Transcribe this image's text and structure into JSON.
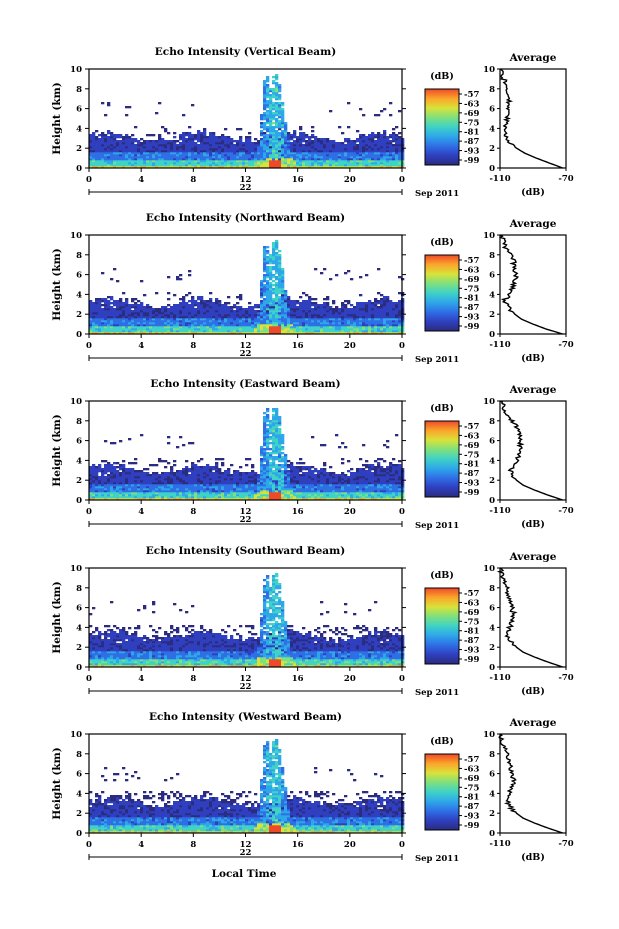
{
  "figure": {
    "xlabel": "Local Time",
    "date_label": "Sep 2011",
    "day_label": "22"
  },
  "chart_data": [
    {
      "type": "heatmap",
      "title": "Echo Intensity (Vertical Beam)",
      "ylabel": "Height (km)",
      "xlim": [
        0,
        24
      ],
      "ylim": [
        0,
        10
      ],
      "xticks": [
        "0",
        "4",
        "8",
        "12",
        "16",
        "20",
        "0"
      ],
      "yticks": [
        "0",
        "2",
        "4",
        "6",
        "8",
        "10"
      ],
      "colorbar": {
        "unit": "(dB)",
        "ticks": [
          "-57",
          "-63",
          "-69",
          "-75",
          "-81",
          "-87",
          "-93",
          "-99"
        ]
      },
      "average": {
        "title": "Average",
        "xlabel": "(dB)",
        "xticks": [
          "-110",
          "-70"
        ],
        "xlim": [
          -110,
          -70
        ],
        "ylim": [
          0,
          10
        ],
        "height": [
          0,
          0.5,
          1,
          1.5,
          2,
          2.5,
          3,
          3.5,
          4,
          4.5,
          5,
          5.5,
          6,
          6.5,
          7,
          7.5,
          8,
          8.5,
          9,
          9.5,
          10
        ],
        "value": [
          -72,
          -80,
          -88,
          -95,
          -100,
          -104,
          -106,
          -107,
          -107,
          -106,
          -106,
          -105,
          -106,
          -105,
          -104,
          -105,
          -107,
          -106,
          -108,
          -109,
          -110
        ]
      }
    },
    {
      "type": "heatmap",
      "title": "Echo Intensity (Northward Beam)",
      "ylabel": "Height (km)",
      "xlim": [
        0,
        24
      ],
      "ylim": [
        0,
        10
      ],
      "xticks": [
        "0",
        "4",
        "8",
        "12",
        "16",
        "20",
        "0"
      ],
      "yticks": [
        "0",
        "2",
        "4",
        "6",
        "8",
        "10"
      ],
      "colorbar": {
        "unit": "(dB)",
        "ticks": [
          "-57",
          "-63",
          "-69",
          "-75",
          "-81",
          "-87",
          "-93",
          "-99"
        ]
      },
      "average": {
        "title": "Average",
        "xlabel": "(dB)",
        "xticks": [
          "-110",
          "-70"
        ],
        "xlim": [
          -110,
          -70
        ],
        "ylim": [
          0,
          10
        ],
        "height": [
          0,
          0.5,
          1,
          1.5,
          2,
          2.5,
          3,
          3.5,
          4,
          4.5,
          5,
          5.5,
          6,
          6.5,
          7,
          7.5,
          8,
          8.5,
          9,
          9.5,
          10
        ],
        "value": [
          -72,
          -82,
          -90,
          -97,
          -101,
          -104,
          -106,
          -107,
          -104,
          -103,
          -102,
          -101,
          -100,
          -101,
          -102,
          -101,
          -104,
          -106,
          -107,
          -108,
          -110
        ]
      }
    },
    {
      "type": "heatmap",
      "title": "Echo Intensity (Eastward Beam)",
      "ylabel": "Height (km)",
      "xlim": [
        0,
        24
      ],
      "ylim": [
        0,
        10
      ],
      "xticks": [
        "0",
        "4",
        "8",
        "12",
        "16",
        "20",
        "0"
      ],
      "yticks": [
        "0",
        "2",
        "4",
        "6",
        "8",
        "10"
      ],
      "colorbar": {
        "unit": "(dB)",
        "ticks": [
          "-57",
          "-63",
          "-69",
          "-75",
          "-81",
          "-87",
          "-93",
          "-99"
        ]
      },
      "average": {
        "title": "Average",
        "xlabel": "(dB)",
        "xticks": [
          "-110",
          "-70"
        ],
        "xlim": [
          -110,
          -70
        ],
        "ylim": [
          0,
          10
        ],
        "height": [
          0,
          0.5,
          1,
          1.5,
          2,
          2.5,
          3,
          3.5,
          4,
          4.5,
          5,
          5.5,
          6,
          6.5,
          7,
          7.5,
          8,
          8.5,
          9,
          9.5,
          10
        ],
        "value": [
          -72,
          -81,
          -89,
          -96,
          -100,
          -103,
          -104,
          -101,
          -99,
          -99,
          -98,
          -98,
          -97,
          -98,
          -99,
          -100,
          -103,
          -105,
          -107,
          -108,
          -110
        ]
      }
    },
    {
      "type": "heatmap",
      "title": "Echo Intensity (Southward Beam)",
      "ylabel": "Height (km)",
      "xlim": [
        0,
        24
      ],
      "ylim": [
        0,
        10
      ],
      "xticks": [
        "0",
        "4",
        "8",
        "12",
        "16",
        "20",
        "0"
      ],
      "yticks": [
        "0",
        "2",
        "4",
        "6",
        "8",
        "10"
      ],
      "colorbar": {
        "unit": "(dB)",
        "ticks": [
          "-57",
          "-63",
          "-69",
          "-75",
          "-81",
          "-87",
          "-93",
          "-99"
        ]
      },
      "average": {
        "title": "Average",
        "xlabel": "(dB)",
        "xticks": [
          "-110",
          "-70"
        ],
        "xlim": [
          -110,
          -70
        ],
        "ylim": [
          0,
          10
        ],
        "height": [
          0,
          0.5,
          1,
          1.5,
          2,
          2.5,
          3,
          3.5,
          4,
          4.5,
          5,
          5.5,
          6,
          6.5,
          7,
          7.5,
          8,
          8.5,
          9,
          9.5,
          10
        ],
        "value": [
          -72,
          -81,
          -89,
          -96,
          -100,
          -103,
          -105,
          -106,
          -104,
          -103,
          -102,
          -102,
          -103,
          -104,
          -104,
          -105,
          -106,
          -107,
          -108,
          -109,
          -110
        ]
      }
    },
    {
      "type": "heatmap",
      "title": "Echo Intensity (Westward Beam)",
      "ylabel": "Height (km)",
      "xlim": [
        0,
        24
      ],
      "ylim": [
        0,
        10
      ],
      "xticks": [
        "0",
        "4",
        "8",
        "12",
        "16",
        "20",
        "0"
      ],
      "yticks": [
        "0",
        "2",
        "4",
        "6",
        "8",
        "10"
      ],
      "colorbar": {
        "unit": "(dB)",
        "ticks": [
          "-57",
          "-63",
          "-69",
          "-75",
          "-81",
          "-87",
          "-93",
          "-99"
        ]
      },
      "average": {
        "title": "Average",
        "xlabel": "(dB)",
        "xticks": [
          "-110",
          "-70"
        ],
        "xlim": [
          -110,
          -70
        ],
        "ylim": [
          0,
          10
        ],
        "height": [
          0,
          0.5,
          1,
          1.5,
          2,
          2.5,
          3,
          3.5,
          4,
          4.5,
          5,
          5.5,
          6,
          6.5,
          7,
          7.5,
          8,
          8.5,
          9,
          9.5,
          10
        ],
        "value": [
          -72,
          -81,
          -89,
          -96,
          -100,
          -103,
          -105,
          -106,
          -104,
          -103,
          -102,
          -102,
          -103,
          -103,
          -104,
          -105,
          -106,
          -107,
          -108,
          -109,
          -110
        ]
      }
    }
  ],
  "colors": {
    "scale": [
      "#2b2c7f",
      "#2f3fbf",
      "#2f6fe6",
      "#2ea7ea",
      "#3fd2c6",
      "#7ee07e",
      "#d9e23a",
      "#fba52a",
      "#ee4a2a"
    ]
  }
}
